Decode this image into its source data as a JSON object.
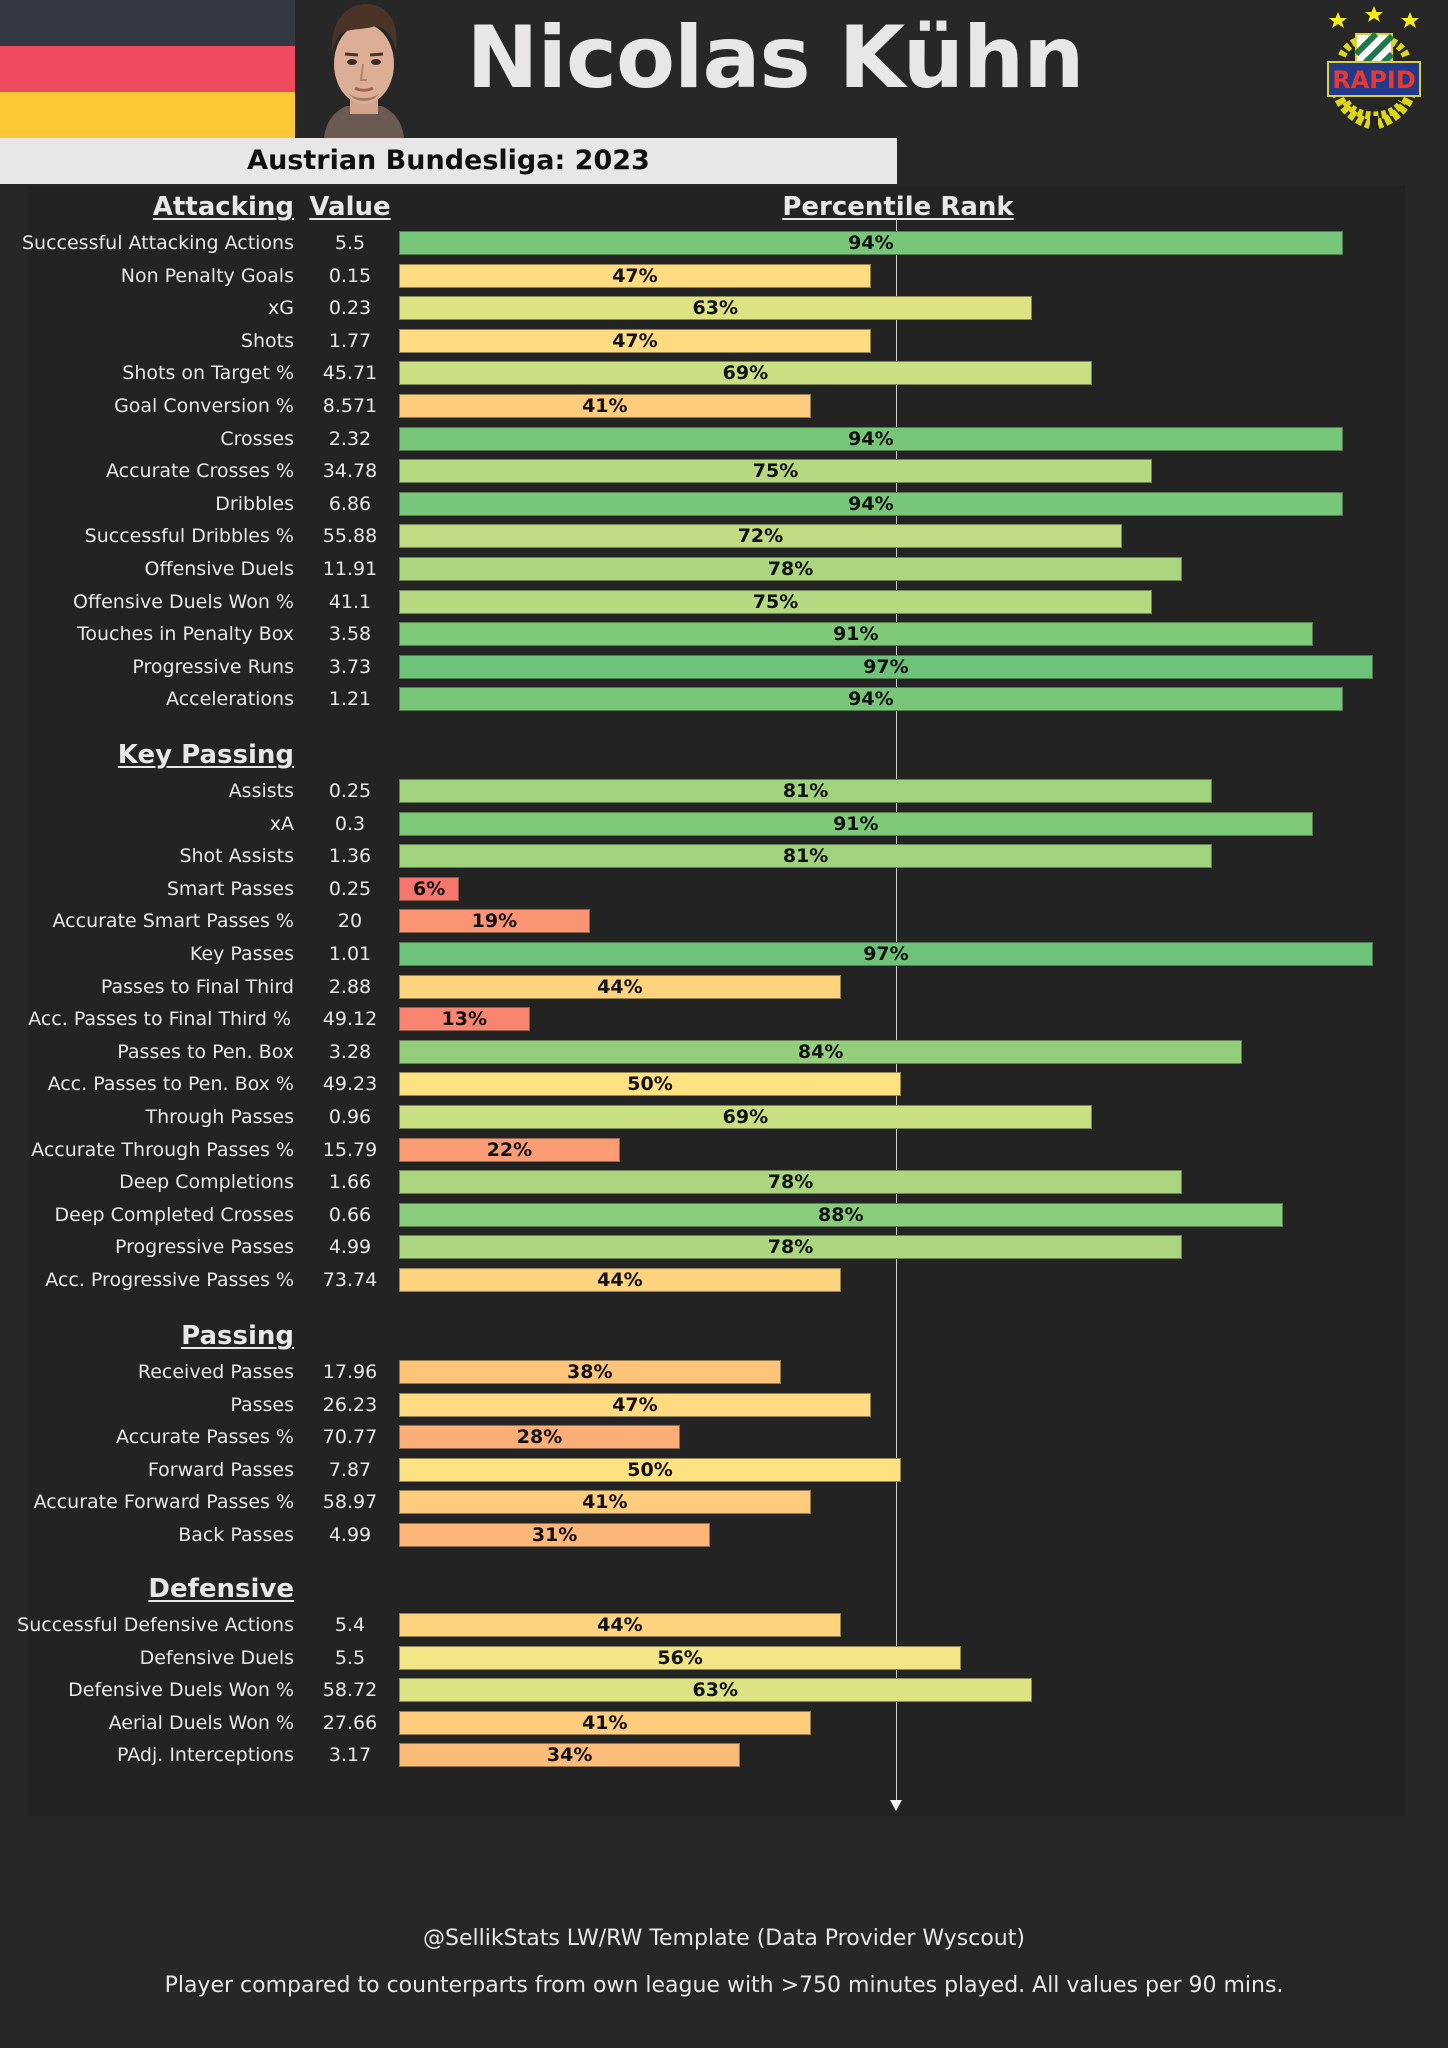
{
  "header": {
    "player_name": "Nicolas Kühn",
    "league_season": "Austrian Bundesliga: 2023",
    "flag": {
      "country": "Germany",
      "stripes": [
        "#343842",
        "#f04a5e",
        "#fdc836"
      ]
    },
    "club_logo": {
      "name": "RAPID",
      "stars": 3,
      "colors": {
        "shield_green": "#1d7a46",
        "banner_blue": "#233a8a",
        "text_red": "#e8392f",
        "wreath_yellow": "#e9e41e"
      }
    },
    "photo": "player-photo"
  },
  "columns": {
    "value_header": "Value",
    "percentile_header": "Percentile Rank"
  },
  "footer": {
    "credit": "@SellikStats LW/RW Template (Data Provider Wyscout)",
    "note": "Player compared to counterparts from own league with >750 minutes played. All values per 90 mins."
  },
  "color_scale": {
    "stops": [
      [
        0,
        "#f26a6a"
      ],
      [
        10,
        "#f67e6e"
      ],
      [
        20,
        "#fa9673"
      ],
      [
        30,
        "#fbb478"
      ],
      [
        40,
        "#fdc97b"
      ],
      [
        50,
        "#fee282"
      ],
      [
        56,
        "#f1e585"
      ],
      [
        63,
        "#dde283"
      ],
      [
        70,
        "#c7dd82"
      ],
      [
        80,
        "#a4d37e"
      ],
      [
        90,
        "#82ca7a"
      ],
      [
        100,
        "#66c07a"
      ]
    ]
  },
  "chart_data": {
    "type": "bar",
    "orientation": "horizontal",
    "title": "Nicolas Kühn",
    "subtitle": "Austrian Bundesliga: 2023",
    "xlabel": "Percentile Rank",
    "xlim": [
      0,
      100
    ],
    "reference_line": 50,
    "grid": false,
    "sections": [
      {
        "name": "Attacking",
        "metrics": [
          {
            "label": "Successful Attacking Actions",
            "value": "5.5",
            "percentile": 94
          },
          {
            "label": "Non Penalty Goals",
            "value": "0.15",
            "percentile": 47
          },
          {
            "label": "xG",
            "value": "0.23",
            "percentile": 63
          },
          {
            "label": "Shots",
            "value": "1.77",
            "percentile": 47
          },
          {
            "label": "Shots on Target %",
            "value": "45.71",
            "percentile": 69
          },
          {
            "label": "Goal Conversion %",
            "value": "8.571",
            "percentile": 41
          },
          {
            "label": "Crosses",
            "value": "2.32",
            "percentile": 94
          },
          {
            "label": "Accurate Crosses %",
            "value": "34.78",
            "percentile": 75
          },
          {
            "label": "Dribbles",
            "value": "6.86",
            "percentile": 94
          },
          {
            "label": "Successful Dribbles %",
            "value": "55.88",
            "percentile": 72
          },
          {
            "label": "Offensive Duels",
            "value": "11.91",
            "percentile": 78
          },
          {
            "label": "Offensive Duels Won %",
            "value": "41.1",
            "percentile": 75
          },
          {
            "label": "Touches in Penalty Box",
            "value": "3.58",
            "percentile": 91
          },
          {
            "label": "Progressive Runs",
            "value": "3.73",
            "percentile": 97
          },
          {
            "label": "Accelerations",
            "value": "1.21",
            "percentile": 94
          }
        ]
      },
      {
        "name": "Key Passing",
        "metrics": [
          {
            "label": "Assists",
            "value": "0.25",
            "percentile": 81
          },
          {
            "label": "xA",
            "value": "0.3",
            "percentile": 91
          },
          {
            "label": "Shot Assists",
            "value": "1.36",
            "percentile": 81
          },
          {
            "label": "Smart Passes",
            "value": "0.25",
            "percentile": 6
          },
          {
            "label": "Accurate Smart Passes %",
            "value": "20",
            "percentile": 19
          },
          {
            "label": "Key Passes",
            "value": "1.01",
            "percentile": 97
          },
          {
            "label": "Passes to Final Third",
            "value": "2.88",
            "percentile": 44
          },
          {
            "label": "Acc. Passes to Final Third %",
            "value": "49.12",
            "percentile": 13
          },
          {
            "label": "Passes to Pen. Box",
            "value": "3.28",
            "percentile": 84
          },
          {
            "label": "Acc. Passes to Pen. Box %",
            "value": "49.23",
            "percentile": 50
          },
          {
            "label": "Through Passes",
            "value": "0.96",
            "percentile": 69
          },
          {
            "label": "Accurate Through Passes %",
            "value": "15.79",
            "percentile": 22
          },
          {
            "label": "Deep Completions",
            "value": "1.66",
            "percentile": 78
          },
          {
            "label": "Deep Completed Crosses",
            "value": "0.66",
            "percentile": 88
          },
          {
            "label": "Progressive Passes",
            "value": "4.99",
            "percentile": 78
          },
          {
            "label": "Acc. Progressive Passes %",
            "value": "73.74",
            "percentile": 44
          }
        ]
      },
      {
        "name": "Passing",
        "metrics": [
          {
            "label": "Received Passes",
            "value": "17.96",
            "percentile": 38
          },
          {
            "label": "Passes",
            "value": "26.23",
            "percentile": 47
          },
          {
            "label": "Accurate Passes %",
            "value": "70.77",
            "percentile": 28
          },
          {
            "label": "Forward Passes",
            "value": "7.87",
            "percentile": 50
          },
          {
            "label": "Accurate Forward Passes %",
            "value": "58.97",
            "percentile": 41
          },
          {
            "label": "Back Passes",
            "value": "4.99",
            "percentile": 31
          }
        ]
      },
      {
        "name": "Defensive",
        "metrics": [
          {
            "label": "Successful Defensive Actions",
            "value": "5.4",
            "percentile": 44
          },
          {
            "label": "Defensive Duels",
            "value": "5.5",
            "percentile": 56
          },
          {
            "label": "Defensive Duels Won %",
            "value": "58.72",
            "percentile": 63
          },
          {
            "label": "Aerial Duels Won %",
            "value": "27.66",
            "percentile": 41
          },
          {
            "label": "PAdj. Interceptions",
            "value": "3.17",
            "percentile": 34
          }
        ]
      }
    ]
  }
}
